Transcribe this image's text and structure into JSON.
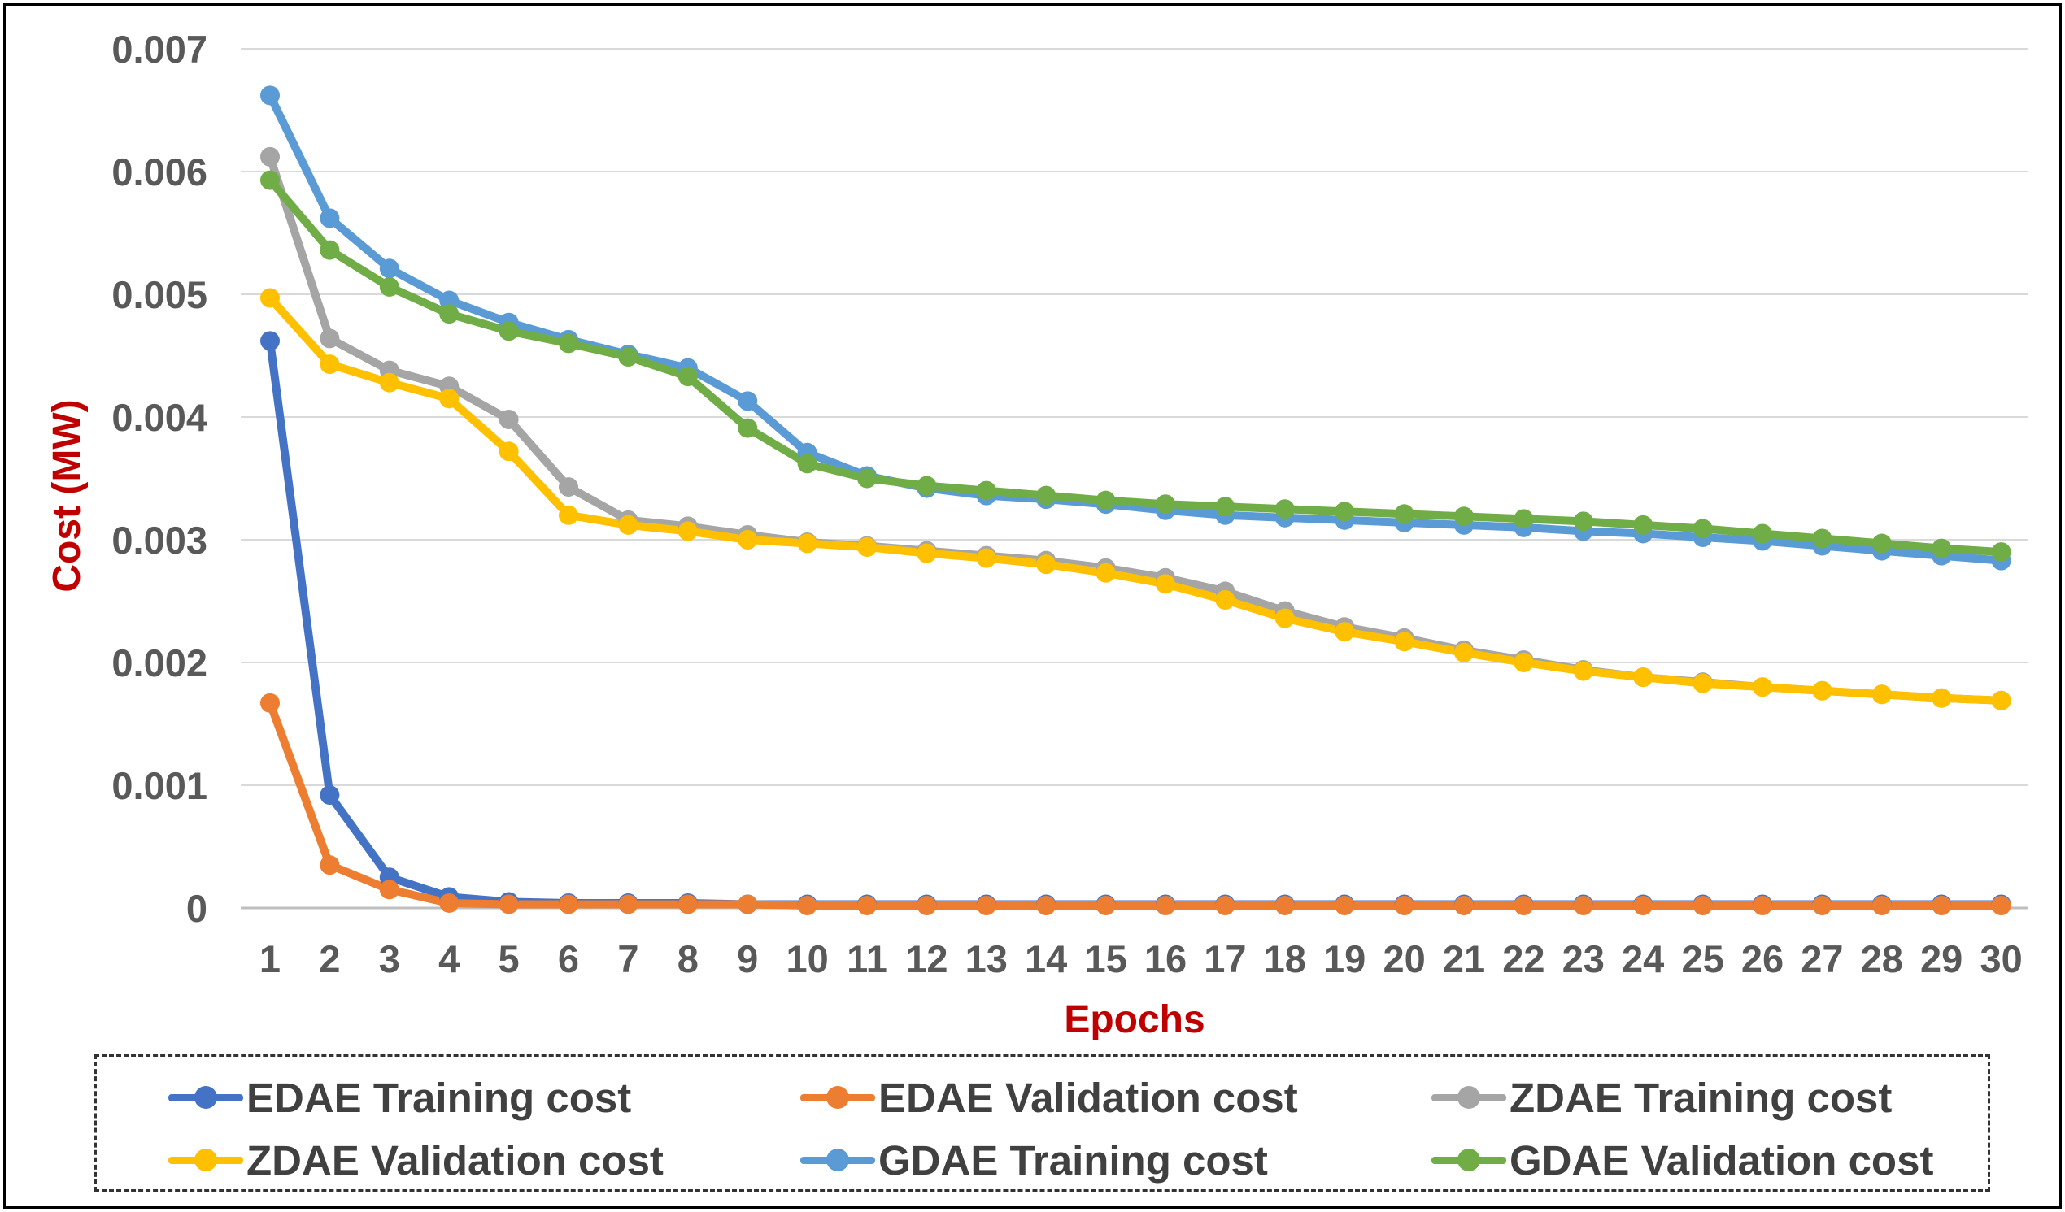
{
  "chart_data": {
    "type": "line",
    "title": "",
    "xlabel": "Epochs",
    "ylabel": "Cost (MW)",
    "categories": [
      "1",
      "2",
      "3",
      "4",
      "5",
      "6",
      "7",
      "8",
      "9",
      "10",
      "11",
      "12",
      "13",
      "14",
      "15",
      "16",
      "17",
      "18",
      "19",
      "20",
      "21",
      "22",
      "23",
      "24",
      "25",
      "26",
      "27",
      "28",
      "29",
      "30"
    ],
    "yticks": [
      "0",
      "0.001",
      "0.002",
      "0.003",
      "0.004",
      "0.005",
      "0.006",
      "0.007"
    ],
    "ylim": [
      0,
      0.007
    ],
    "grid": "horizontal",
    "legend_position": "bottom",
    "label_color": "#C00000",
    "tick_color": "#595959",
    "series": [
      {
        "name": "EDAE Training cost",
        "color": "#4472C4",
        "values": [
          0.00462,
          0.00092,
          0.00025,
          9e-05,
          5e-05,
          4e-05,
          4e-05,
          4e-05,
          3e-05,
          3e-05,
          3e-05,
          3e-05,
          3e-05,
          3e-05,
          3e-05,
          3e-05,
          3e-05,
          3e-05,
          3e-05,
          3e-05,
          3e-05,
          3e-05,
          3e-05,
          3e-05,
          3e-05,
          3e-05,
          3e-05,
          3e-05,
          3e-05,
          3e-05
        ]
      },
      {
        "name": "EDAE Validation cost",
        "color": "#ED7D31",
        "values": [
          0.00167,
          0.00035,
          0.00015,
          4e-05,
          3e-05,
          3e-05,
          3e-05,
          3e-05,
          3e-05,
          2e-05,
          2e-05,
          2e-05,
          2e-05,
          2e-05,
          2e-05,
          2e-05,
          2e-05,
          2e-05,
          2e-05,
          2e-05,
          2e-05,
          2e-05,
          2e-05,
          2e-05,
          2e-05,
          2e-05,
          2e-05,
          2e-05,
          2e-05,
          2e-05
        ]
      },
      {
        "name": "ZDAE Training cost",
        "color": "#A5A5A5",
        "values": [
          0.00612,
          0.00464,
          0.00438,
          0.00425,
          0.00398,
          0.00343,
          0.00316,
          0.00311,
          0.00304,
          0.00298,
          0.00295,
          0.00291,
          0.00287,
          0.00283,
          0.00277,
          0.00269,
          0.00258,
          0.00242,
          0.00229,
          0.0022,
          0.0021,
          0.00202,
          0.00194,
          0.00188,
          0.00184,
          0.0018,
          0.00177,
          0.00174,
          0.00171,
          0.00169
        ]
      },
      {
        "name": "ZDAE Validation cost",
        "color": "#FFC000",
        "values": [
          0.00497,
          0.00443,
          0.00428,
          0.00415,
          0.00372,
          0.0032,
          0.00312,
          0.00307,
          0.003,
          0.00297,
          0.00294,
          0.00289,
          0.00285,
          0.0028,
          0.00273,
          0.00264,
          0.00251,
          0.00236,
          0.00225,
          0.00217,
          0.00208,
          0.002,
          0.00193,
          0.00188,
          0.00183,
          0.0018,
          0.00177,
          0.00174,
          0.00171,
          0.00169
        ]
      },
      {
        "name": "GDAE Training cost",
        "color": "#5B9BD5",
        "values": [
          0.00662,
          0.00562,
          0.00521,
          0.00495,
          0.00477,
          0.00463,
          0.00451,
          0.0044,
          0.00413,
          0.00371,
          0.00352,
          0.00342,
          0.00336,
          0.00333,
          0.00329,
          0.00324,
          0.0032,
          0.00318,
          0.00316,
          0.00314,
          0.00312,
          0.0031,
          0.00307,
          0.00305,
          0.00302,
          0.00299,
          0.00295,
          0.00291,
          0.00287,
          0.00283
        ]
      },
      {
        "name": "GDAE Validation cost",
        "color": "#70AD47",
        "values": [
          0.00593,
          0.00536,
          0.00506,
          0.00484,
          0.0047,
          0.0046,
          0.00449,
          0.00433,
          0.00391,
          0.00362,
          0.0035,
          0.00344,
          0.0034,
          0.00336,
          0.00332,
          0.00329,
          0.00327,
          0.00325,
          0.00323,
          0.00321,
          0.00319,
          0.00317,
          0.00315,
          0.00312,
          0.00309,
          0.00305,
          0.00301,
          0.00297,
          0.00293,
          0.0029
        ]
      }
    ]
  }
}
